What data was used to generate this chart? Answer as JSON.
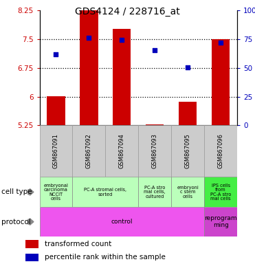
{
  "title": "GDS4124 / 228716_at",
  "samples": [
    "GSM867091",
    "GSM867092",
    "GSM867094",
    "GSM867093",
    "GSM867095",
    "GSM867096"
  ],
  "transformed_counts": [
    6.02,
    8.37,
    7.78,
    5.27,
    5.87,
    7.5
  ],
  "bar_base": 5.25,
  "percentile_ranks_pct": [
    62,
    76,
    74.5,
    65.5,
    50.5,
    72
  ],
  "ylim_left": [
    5.25,
    8.25
  ],
  "ylim_right": [
    0,
    100
  ],
  "yticks_left": [
    5.25,
    6.0,
    6.75,
    7.5,
    8.25
  ],
  "yticks_right": [
    0,
    25,
    50,
    75,
    100
  ],
  "ytick_labels_left": [
    "5.25",
    "6",
    "6.75",
    "7.5",
    "8.25"
  ],
  "ytick_labels_right": [
    "0",
    "25",
    "50",
    "75",
    "100%"
  ],
  "dotted_lines": [
    6.0,
    6.75,
    7.5
  ],
  "bar_color": "#CC0000",
  "dot_color": "#0000BB",
  "cell_types": [
    {
      "label": "embryonal\ncarcinoma\nNCCIT\ncells",
      "color": "#bbffbb",
      "span": [
        0,
        1
      ]
    },
    {
      "label": "PC-A stromal cells,\nsorted",
      "color": "#bbffbb",
      "span": [
        1,
        3
      ]
    },
    {
      "label": "PC-A stro\nmal cells,\ncultured",
      "color": "#bbffbb",
      "span": [
        3,
        4
      ]
    },
    {
      "label": "embryoni\nc stem\ncells",
      "color": "#bbffbb",
      "span": [
        4,
        5
      ]
    },
    {
      "label": "IPS cells\nfrom\nPC-A stro\nmal cells",
      "color": "#44ee44",
      "span": [
        5,
        6
      ]
    }
  ],
  "protocols": [
    {
      "label": "control",
      "color": "#ee55ee",
      "span": [
        0,
        5
      ]
    },
    {
      "label": "reprogram\nming",
      "color": "#cc44cc",
      "span": [
        5,
        6
      ]
    }
  ],
  "left_axis_color": "#CC0000",
  "right_axis_color": "#0000BB",
  "bg_color": "#ffffff"
}
